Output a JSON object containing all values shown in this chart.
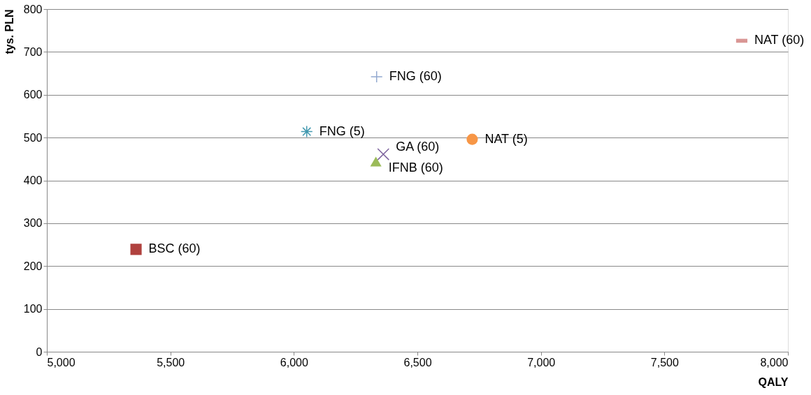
{
  "chart_data": {
    "type": "scatter",
    "xlabel": "QALY",
    "ylabel": "tys. PLN",
    "xlim": [
      5000,
      8000
    ],
    "xticks": [
      {
        "value": 5000,
        "label": "5,000"
      },
      {
        "value": 5500,
        "label": "5,500"
      },
      {
        "value": 6000,
        "label": "6,000"
      },
      {
        "value": 6500,
        "label": "6,500"
      },
      {
        "value": 7000,
        "label": "7,000"
      },
      {
        "value": 7500,
        "label": "7,500"
      },
      {
        "value": 8000,
        "label": "8,000"
      }
    ],
    "ylim": [
      0,
      800
    ],
    "yticks": [
      0,
      100,
      200,
      300,
      400,
      500,
      600,
      700,
      800
    ],
    "grid": "y",
    "series": [
      {
        "name": "BSC (60)",
        "color": "#b0413e",
        "marker": "square",
        "x": [
          5361
        ],
        "values": [
          239
        ]
      },
      {
        "name": "FNG (5)",
        "color": "#4198af",
        "marker": "cross",
        "x": [
          6052
        ],
        "values": [
          514
        ]
      },
      {
        "name": "FNG (60)",
        "color": "#93a9cf",
        "marker": "plus",
        "x": [
          6335
        ],
        "values": [
          642
        ]
      },
      {
        "name": "GA (60)",
        "color": "#7e649e",
        "marker": "cross",
        "x": [
          6362
        ],
        "values": [
          461
        ]
      },
      {
        "name": "IFNB (60)",
        "color": "#9bbb59",
        "marker": "triangle",
        "x": [
          6332
        ],
        "values": [
          444
        ]
      },
      {
        "name": "NAT (5)",
        "color": "#f79646",
        "marker": "circle",
        "x": [
          6722
        ],
        "values": [
          496
        ]
      },
      {
        "name": "NAT (60)",
        "color": "#d99694",
        "marker": "square",
        "x": [
          7813
        ],
        "values": [
          726
        ]
      }
    ]
  }
}
